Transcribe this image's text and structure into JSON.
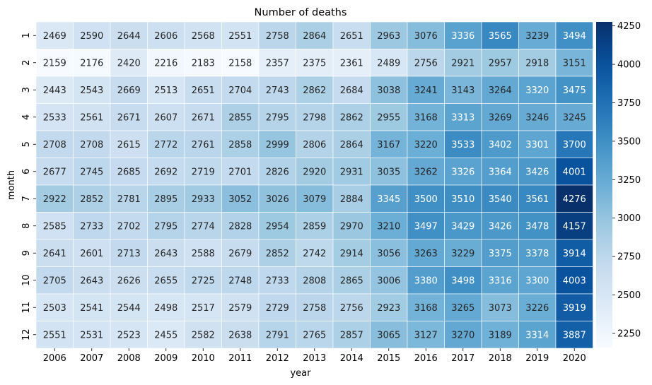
{
  "chart_data": {
    "type": "heatmap",
    "title": "Number of deaths",
    "xlabel": "year",
    "ylabel": "month",
    "x_categories": [
      "2006",
      "2007",
      "2008",
      "2009",
      "2010",
      "2011",
      "2012",
      "2013",
      "2014",
      "2015",
      "2016",
      "2017",
      "2018",
      "2019",
      "2020"
    ],
    "y_categories": [
      "1",
      "2",
      "3",
      "4",
      "5",
      "6",
      "7",
      "8",
      "9",
      "10",
      "11",
      "12"
    ],
    "values": [
      [
        2469,
        2590,
        2644,
        2606,
        2568,
        2551,
        2758,
        2864,
        2651,
        2963,
        3076,
        3336,
        3565,
        3239,
        3494
      ],
      [
        2159,
        2176,
        2420,
        2216,
        2183,
        2158,
        2357,
        2375,
        2361,
        2489,
        2756,
        2921,
        2957,
        2918,
        3151
      ],
      [
        2443,
        2543,
        2669,
        2513,
        2651,
        2704,
        2743,
        2862,
        2684,
        3038,
        3241,
        3143,
        3264,
        3320,
        3475
      ],
      [
        2533,
        2561,
        2671,
        2607,
        2671,
        2855,
        2795,
        2798,
        2862,
        2955,
        3168,
        3313,
        3269,
        3246,
        3245
      ],
      [
        2708,
        2708,
        2615,
        2772,
        2761,
        2858,
        2999,
        2806,
        2864,
        3167,
        3220,
        3533,
        3402,
        3301,
        3700
      ],
      [
        2677,
        2745,
        2685,
        2692,
        2719,
        2701,
        2826,
        2920,
        2931,
        3035,
        3262,
        3326,
        3364,
        3426,
        4001
      ],
      [
        2922,
        2852,
        2781,
        2895,
        2933,
        3052,
        3026,
        3079,
        2884,
        3345,
        3500,
        3510,
        3540,
        3561,
        4276
      ],
      [
        2585,
        2733,
        2702,
        2795,
        2774,
        2828,
        2954,
        2859,
        2970,
        3210,
        3497,
        3429,
        3426,
        3478,
        4157
      ],
      [
        2641,
        2601,
        2713,
        2643,
        2588,
        2679,
        2852,
        2742,
        2914,
        3056,
        3263,
        3229,
        3375,
        3378,
        3914
      ],
      [
        2705,
        2643,
        2626,
        2655,
        2725,
        2748,
        2733,
        2808,
        2865,
        3006,
        3380,
        3498,
        3316,
        3300,
        4003
      ],
      [
        2503,
        2541,
        2544,
        2498,
        2517,
        2579,
        2729,
        2758,
        2756,
        2923,
        3168,
        3265,
        3073,
        3226,
        3919
      ],
      [
        2551,
        2531,
        2523,
        2455,
        2582,
        2638,
        2791,
        2765,
        2857,
        3065,
        3127,
        3270,
        3189,
        3314,
        3887
      ]
    ],
    "colormap": "Blues",
    "vmin": 2158,
    "vmax": 4276,
    "colorbar_ticks": [
      2250,
      2500,
      2750,
      3000,
      3250,
      3500,
      3750,
      4000,
      4250
    ],
    "colorbar_tick_labels": [
      "2250",
      "2500",
      "2750",
      "3000",
      "3250",
      "3500",
      "3750",
      "4000",
      "4250"
    ],
    "annotated": true,
    "cell_border_color": "#ffffff"
  }
}
